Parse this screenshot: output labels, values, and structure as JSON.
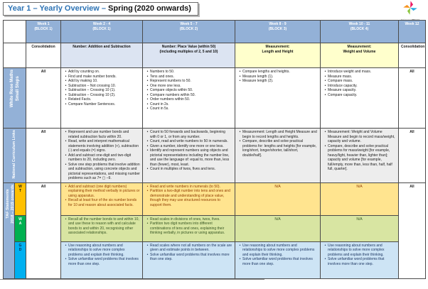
{
  "page": {
    "title": {
      "part1": "Year 1 – Yearly Overview –",
      "part2": "Spring",
      "part3": "(2020 onwards)"
    },
    "logo": {
      "part1": "Primary",
      "part2": "Stars"
    }
  },
  "colors": {
    "header_blue": "#93B1D7",
    "sidebar_blue": "#93B1D7",
    "topic_blue": "#DCE4F2",
    "topic_yellow": "#FFFFCC",
    "curriculum_gray": "#EDEDED",
    "wt_row": "#FFE48F",
    "wt_tag": "#FFC000",
    "wa_row": "#D8E5A2",
    "wa_tag": "#00B050",
    "gd_row": "#CDE4F5",
    "gd_tag": "#00B0F0",
    "title_blue": "#2E74B5"
  },
  "table": {
    "header": [
      {
        "lines": [
          "Week 1",
          "(BLOCK 1)"
        ]
      },
      {
        "lines": [
          "Week 2 - 4",
          "(BLOCK 1)"
        ]
      },
      {
        "lines": [
          "Week 5 - 7",
          "(BLOCK 2)"
        ]
      },
      {
        "lines": [
          "Week 8 - 9",
          "(BLOCK 3)"
        ]
      },
      {
        "lines": [
          "Week 10 - 11",
          "(BLOCK 4)"
        ]
      },
      {
        "lines": [
          "Week 12"
        ]
      }
    ],
    "topics": {
      "week1": "Consolidation",
      "week2_4": [
        "Number: Addition and Subtraction"
      ],
      "week5_7": [
        "Number: Place Value (within 50)",
        "(including multiples of 2, 5 and 10)"
      ],
      "week8_9": [
        "Measurement:",
        "Length and Height"
      ],
      "week10_11": [
        "Measurement:",
        "Weight and Volume"
      ],
      "week12": "Consolidation"
    },
    "white_rose": {
      "label_lines": [
        "White Rose Maths",
        "Small Steps"
      ],
      "week1": "All",
      "week2_4": [
        "Add by counting on.",
        "Find and make number bonds.",
        "Add by making 10.",
        "Subtraction – Not crossing 10.",
        "Subtraction – Crossing 10 (1).",
        "Subtraction – Crossing 10 (2).",
        "Related Facts.",
        "Compare Number Sentences."
      ],
      "week5_7": [
        "Numbers to 50.",
        "Tens and ones.",
        "Represent numbers to 50.",
        "One more one less.",
        "Compare objects within 50.",
        "Compare numbers within 50.",
        "Order numbers within 50.",
        "Count in 2s.",
        "Count in 5s."
      ],
      "week8_9": [
        "Compare lengths and heights.",
        "Measure length (1).",
        "Measure length (2)."
      ],
      "week10_11": [
        "Introduce weight and mass.",
        "Measure mass.",
        "Compare mass.",
        "Introduce capacity.",
        "Measure capacity.",
        "Compare capacity."
      ],
      "week12": "All"
    },
    "curriculum": {
      "label_lines": [
        "National Curriculum Links"
      ],
      "week1": "All",
      "week2_4": [
        "Represent and use number bonds and related subtraction facts within 20.",
        "Read, write and interpret mathematical statements involving addition (+), subtraction (-) and equals (=) signs.",
        "Add and subtract one-digit and two-digit numbers to 20, including zero.",
        "Solve one step problems that involve addition and subtraction, using concrete objects and pictorial representations, and missing number problems such as 7= ▢ –9."
      ],
      "week5_7": [
        "Count to 50 forwards and backwards, beginning with 0 or 1, or from any number.",
        "Count, read and write numbers to 50 in numerals.",
        "Given a number, identify one more or one less.",
        "Identify and represent numbers using objects and pictorial representations including the number line, and use the language of: equal to, more than, less than (fewer), most, least.",
        "Count in multiples of twos, fives and tens."
      ],
      "week8_9": [
        "Measurement: Length and Height Measure and begin to record lengths and heights.",
        "Compare, describe and solve practical problems for: lengths and heights [for example, long/short, longer/shorter, tall/short, double/half]."
      ],
      "week10_11": [
        "Measurement: Weight and Volume Measure and begin to record mass/weight, capacity and volume.",
        "Compare, describe and solve practical problems for mass/weight [for example, heavy/light, heavier than, lighter than]; capacity and volume [for example, full/empty, more than, less than, half, half full, quarter]."
      ],
      "week12": "All"
    },
    "taf": {
      "label_lines": [
        "TAF Statements",
        "2018 – 2019 onwards"
      ],
      "week1": "All",
      "week12": "All",
      "wt": {
        "tag_lines": [
          "W",
          "T"
        ],
        "week2_4": [
          "Add and subtract (one digit numbers) explaining their method verbally in pictures or using apparatus.",
          "Recall at least four of the six number bonds for 10 and reason about associated facts."
        ],
        "week5_7": [
          "Read and write numbers in numerals (to 50).",
          "Partition a two-digit number into tens and ones and demonstrate and understanding of place value, though they may use structured resources to support them."
        ],
        "week8_9": "N/A",
        "week10_11": "N/A"
      },
      "wa": {
        "tag_lines": [
          "W",
          "A"
        ],
        "week2_4": [
          "Recall all the number bonds to and within 10, and use these to reason with and calculate bonds to and within 20, recognising other associated relationships."
        ],
        "week5_7": [
          "Read scales in divisions of ones, twos, fives.",
          "Partition two digit numbers into different combinations of tens and ones, explaining their thinking verbally, in pictures or using apparatus."
        ],
        "week8_9": "N/A",
        "week10_11": "N/A"
      },
      "gd": {
        "tag_lines": [
          "G",
          "D"
        ],
        "week2_4": [
          "Use reasoning about numbers and relationships to solve more complex problems and explain their thinking.",
          "Solve unfamiliar word problems that involves more than one step."
        ],
        "week5_7": [
          "Read scales where not all numbers on the scale are given and estimate points in between.",
          "Solve unfamiliar word problems that involves more than one step."
        ],
        "week8_9": [
          "Use reasoning about numbers and relationships to solve more complex problems and explain their thinking.",
          "Solve unfamiliar word problems that involves more than one step."
        ],
        "week10_11": [
          "Use reasoning about numbers and relationships to solve more complex problems and explain their thinking.",
          "Solve unfamiliar word problems that involves more than one step."
        ]
      }
    }
  }
}
